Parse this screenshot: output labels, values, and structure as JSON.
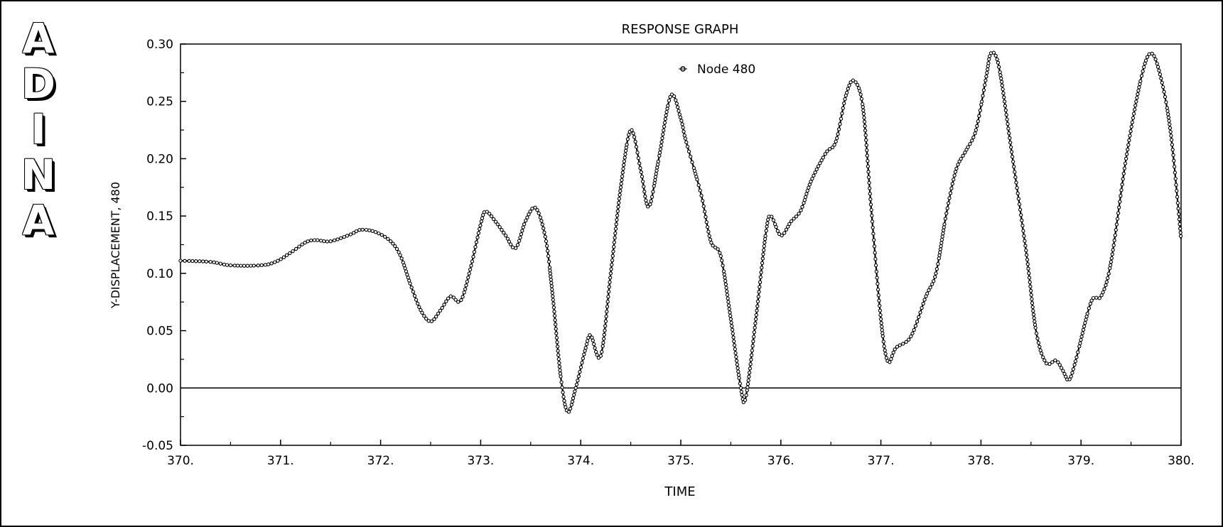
{
  "logo": {
    "letters": [
      "A",
      "D",
      "I",
      "N",
      "A"
    ]
  },
  "chart_data": {
    "type": "line",
    "title": "RESPONSE GRAPH",
    "xlabel": "TIME",
    "ylabel": "Y-DISPLACEMENT, 480",
    "xlim": [
      370,
      380
    ],
    "ylim": [
      -0.05,
      0.3
    ],
    "x_ticks": [
      370,
      371,
      372,
      373,
      374,
      375,
      376,
      377,
      378,
      379,
      380
    ],
    "x_tick_labels": [
      "370.",
      "371.",
      "372.",
      "373.",
      "374.",
      "375.",
      "376.",
      "377.",
      "378.",
      "379.",
      "380."
    ],
    "y_ticks": [
      -0.05,
      0.0,
      0.05,
      0.1,
      0.15,
      0.2,
      0.25,
      0.3
    ],
    "y_tick_labels": [
      "-0.05",
      "0.00",
      "0.05",
      "0.10",
      "0.15",
      "0.20",
      "0.25",
      "0.30"
    ],
    "zero_line": true,
    "grid": false,
    "legend_position": "top-center",
    "series": [
      {
        "name": "Node 480",
        "marker": "circle",
        "color": "#000000",
        "points": [
          [
            370.0,
            0.111
          ],
          [
            370.3,
            0.11
          ],
          [
            370.5,
            0.107
          ],
          [
            370.8,
            0.107
          ],
          [
            370.95,
            0.11
          ],
          [
            371.1,
            0.118
          ],
          [
            371.25,
            0.127
          ],
          [
            371.35,
            0.129
          ],
          [
            371.5,
            0.128
          ],
          [
            371.7,
            0.134
          ],
          [
            371.8,
            0.138
          ],
          [
            371.95,
            0.136
          ],
          [
            372.1,
            0.128
          ],
          [
            372.2,
            0.115
          ],
          [
            372.3,
            0.09
          ],
          [
            372.4,
            0.068
          ],
          [
            372.5,
            0.058
          ],
          [
            372.6,
            0.068
          ],
          [
            372.7,
            0.08
          ],
          [
            372.8,
            0.076
          ],
          [
            372.9,
            0.105
          ],
          [
            373.0,
            0.143
          ],
          [
            373.05,
            0.154
          ],
          [
            373.15,
            0.145
          ],
          [
            373.25,
            0.133
          ],
          [
            373.35,
            0.122
          ],
          [
            373.45,
            0.146
          ],
          [
            373.55,
            0.157
          ],
          [
            373.65,
            0.13
          ],
          [
            373.72,
            0.08
          ],
          [
            373.8,
            0.01
          ],
          [
            373.87,
            -0.021
          ],
          [
            373.95,
            0.0
          ],
          [
            374.05,
            0.035
          ],
          [
            374.1,
            0.046
          ],
          [
            374.2,
            0.028
          ],
          [
            374.3,
            0.1
          ],
          [
            374.4,
            0.175
          ],
          [
            374.5,
            0.225
          ],
          [
            374.6,
            0.19
          ],
          [
            374.68,
            0.158
          ],
          [
            374.78,
            0.2
          ],
          [
            374.9,
            0.255
          ],
          [
            375.0,
            0.235
          ],
          [
            375.05,
            0.216
          ],
          [
            375.2,
            0.17
          ],
          [
            375.3,
            0.128
          ],
          [
            375.4,
            0.115
          ],
          [
            375.5,
            0.06
          ],
          [
            375.6,
            0.0
          ],
          [
            375.65,
            -0.008
          ],
          [
            375.75,
            0.06
          ],
          [
            375.85,
            0.135
          ],
          [
            375.9,
            0.15
          ],
          [
            376.0,
            0.133
          ],
          [
            376.1,
            0.145
          ],
          [
            376.2,
            0.155
          ],
          [
            376.3,
            0.18
          ],
          [
            376.45,
            0.205
          ],
          [
            376.55,
            0.215
          ],
          [
            376.65,
            0.255
          ],
          [
            376.73,
            0.268
          ],
          [
            376.82,
            0.245
          ],
          [
            376.9,
            0.16
          ],
          [
            377.0,
            0.06
          ],
          [
            377.07,
            0.023
          ],
          [
            377.15,
            0.035
          ],
          [
            377.3,
            0.045
          ],
          [
            377.45,
            0.08
          ],
          [
            377.55,
            0.1
          ],
          [
            377.65,
            0.15
          ],
          [
            377.75,
            0.19
          ],
          [
            377.85,
            0.207
          ],
          [
            377.95,
            0.225
          ],
          [
            378.05,
            0.27
          ],
          [
            378.1,
            0.292
          ],
          [
            378.18,
            0.28
          ],
          [
            378.3,
            0.21
          ],
          [
            378.45,
            0.12
          ],
          [
            378.55,
            0.05
          ],
          [
            378.65,
            0.022
          ],
          [
            378.75,
            0.024
          ],
          [
            378.82,
            0.015
          ],
          [
            378.88,
            0.007
          ],
          [
            378.95,
            0.025
          ],
          [
            379.1,
            0.075
          ],
          [
            379.2,
            0.08
          ],
          [
            379.3,
            0.11
          ],
          [
            379.45,
            0.2
          ],
          [
            379.6,
            0.27
          ],
          [
            379.7,
            0.292
          ],
          [
            379.8,
            0.27
          ],
          [
            379.9,
            0.22
          ],
          [
            380.0,
            0.13
          ]
        ]
      }
    ]
  }
}
